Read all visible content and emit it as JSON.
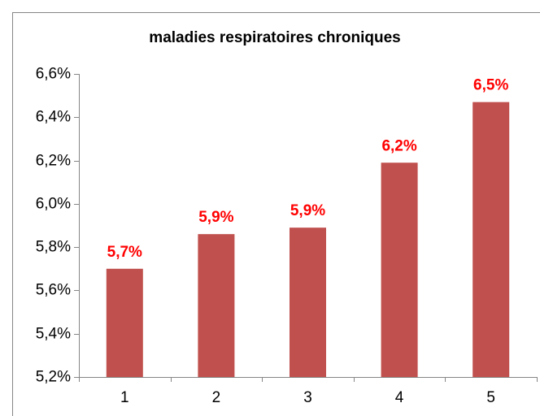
{
  "chart_data": {
    "type": "bar",
    "title": "maladies respiratoires chroniques",
    "categories": [
      "1",
      "2",
      "3",
      "4",
      "5"
    ],
    "values": [
      5.7,
      5.86,
      5.89,
      6.19,
      6.47
    ],
    "value_labels": [
      "5,7%",
      "5,9%",
      "5,9%",
      "6,2%",
      "6,5%"
    ],
    "color": "#c0504d",
    "ylim": [
      5.2,
      6.6
    ],
    "yticks": [
      {
        "value": 5.2,
        "label": "5,2%"
      },
      {
        "value": 5.4,
        "label": "5,4%"
      },
      {
        "value": 5.6,
        "label": "5,6%"
      },
      {
        "value": 5.8,
        "label": "5,8%"
      },
      {
        "value": 6.0,
        "label": "6,0%"
      },
      {
        "value": 6.2,
        "label": "6,2%"
      },
      {
        "value": 6.4,
        "label": "6,4%"
      },
      {
        "value": 6.6,
        "label": "6,6%"
      }
    ],
    "grid": false
  }
}
